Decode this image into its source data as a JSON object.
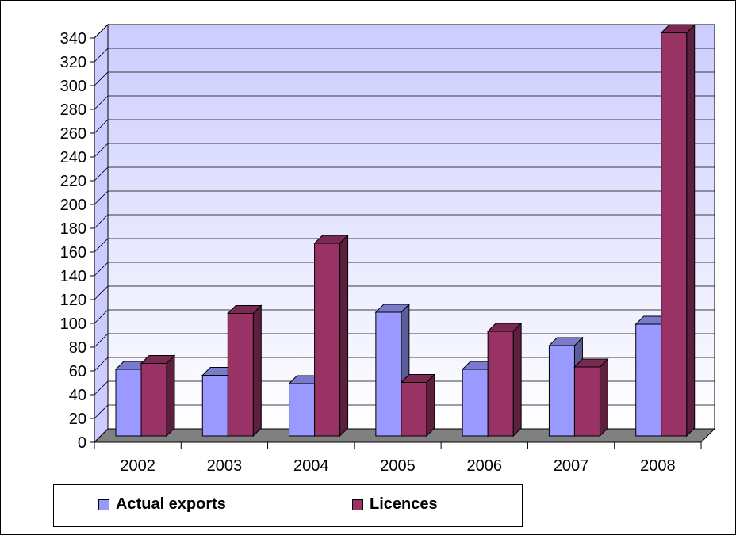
{
  "chart_data": {
    "type": "bar",
    "categories": [
      "2002",
      "2003",
      "2004",
      "2005",
      "2006",
      "2007",
      "2008"
    ],
    "series": [
      {
        "name": "Actual exports",
        "values": [
          56,
          51,
          44,
          104,
          56,
          76,
          94
        ],
        "color": "#9999ff"
      },
      {
        "name": "Licences",
        "values": [
          61,
          103,
          162,
          45,
          88,
          58,
          339
        ],
        "color": "#993366"
      }
    ],
    "yticks": [
      "0",
      "20",
      "40",
      "60",
      "80",
      "100",
      "120",
      "140",
      "160",
      "180",
      "200",
      "220",
      "240",
      "260",
      "280",
      "300",
      "320",
      "340"
    ],
    "ylim": [
      0,
      340
    ],
    "title": "",
    "xlabel": "",
    "ylabel": "",
    "grid": true,
    "legend": "bottom",
    "wall_color": "#ccccff",
    "floor_color": "#808080"
  }
}
